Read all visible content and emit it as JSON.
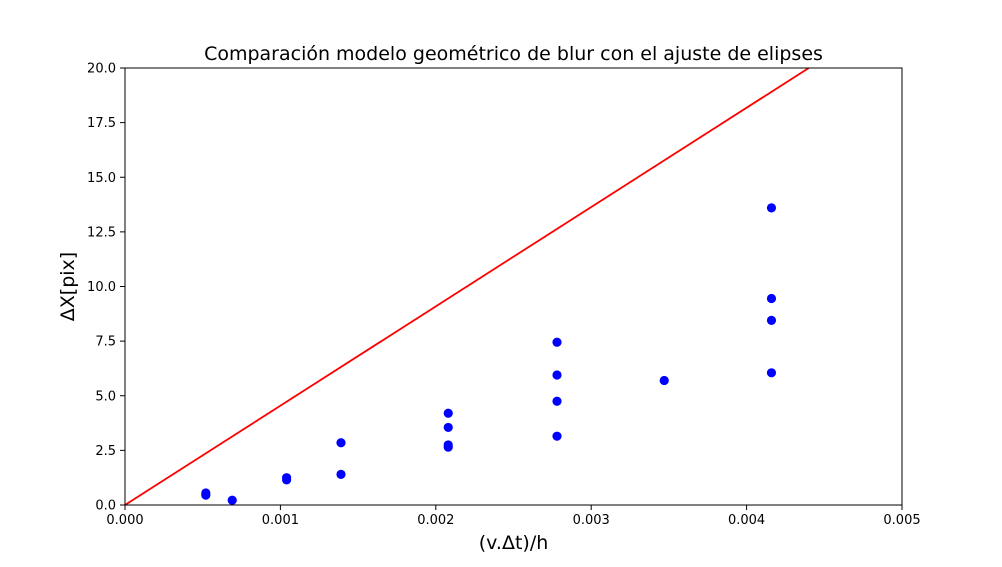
{
  "chart_data": {
    "type": "scatter",
    "title": "Comparación modelo geométrico de blur con el ajuste de elipses",
    "xlabel": "(v.Δt)/h",
    "ylabel": "ΔX[pix]",
    "xlim": [
      0.0,
      0.005
    ],
    "ylim": [
      0.0,
      20.0
    ],
    "x_ticks": [
      "0.000",
      "0.001",
      "0.002",
      "0.003",
      "0.004",
      "0.005"
    ],
    "y_ticks": [
      "0.0",
      "2.5",
      "5.0",
      "7.5",
      "10.0",
      "12.5",
      "15.0",
      "17.5",
      "20.0"
    ],
    "grid": false,
    "series": [
      {
        "kind": "points",
        "color": "#0000ff",
        "points": [
          {
            "x": 0.00052,
            "y": 0.55
          },
          {
            "x": 0.00052,
            "y": 0.45
          },
          {
            "x": 0.00069,
            "y": 0.22
          },
          {
            "x": 0.00104,
            "y": 1.25
          },
          {
            "x": 0.00104,
            "y": 1.15
          },
          {
            "x": 0.00139,
            "y": 2.85
          },
          {
            "x": 0.00139,
            "y": 1.4
          },
          {
            "x": 0.00208,
            "y": 4.2
          },
          {
            "x": 0.00208,
            "y": 3.55
          },
          {
            "x": 0.00208,
            "y": 2.75
          },
          {
            "x": 0.00208,
            "y": 2.65
          },
          {
            "x": 0.00278,
            "y": 7.45
          },
          {
            "x": 0.00278,
            "y": 5.95
          },
          {
            "x": 0.00278,
            "y": 4.75
          },
          {
            "x": 0.00278,
            "y": 3.15
          },
          {
            "x": 0.00347,
            "y": 5.7
          },
          {
            "x": 0.00416,
            "y": 13.6
          },
          {
            "x": 0.00416,
            "y": 9.45
          },
          {
            "x": 0.00416,
            "y": 8.45
          },
          {
            "x": 0.00416,
            "y": 6.05
          }
        ]
      },
      {
        "kind": "line",
        "color": "#ff0000",
        "points": [
          {
            "x": 0.0,
            "y": 0.0
          },
          {
            "x": 0.0044,
            "y": 20.0
          }
        ]
      }
    ]
  }
}
